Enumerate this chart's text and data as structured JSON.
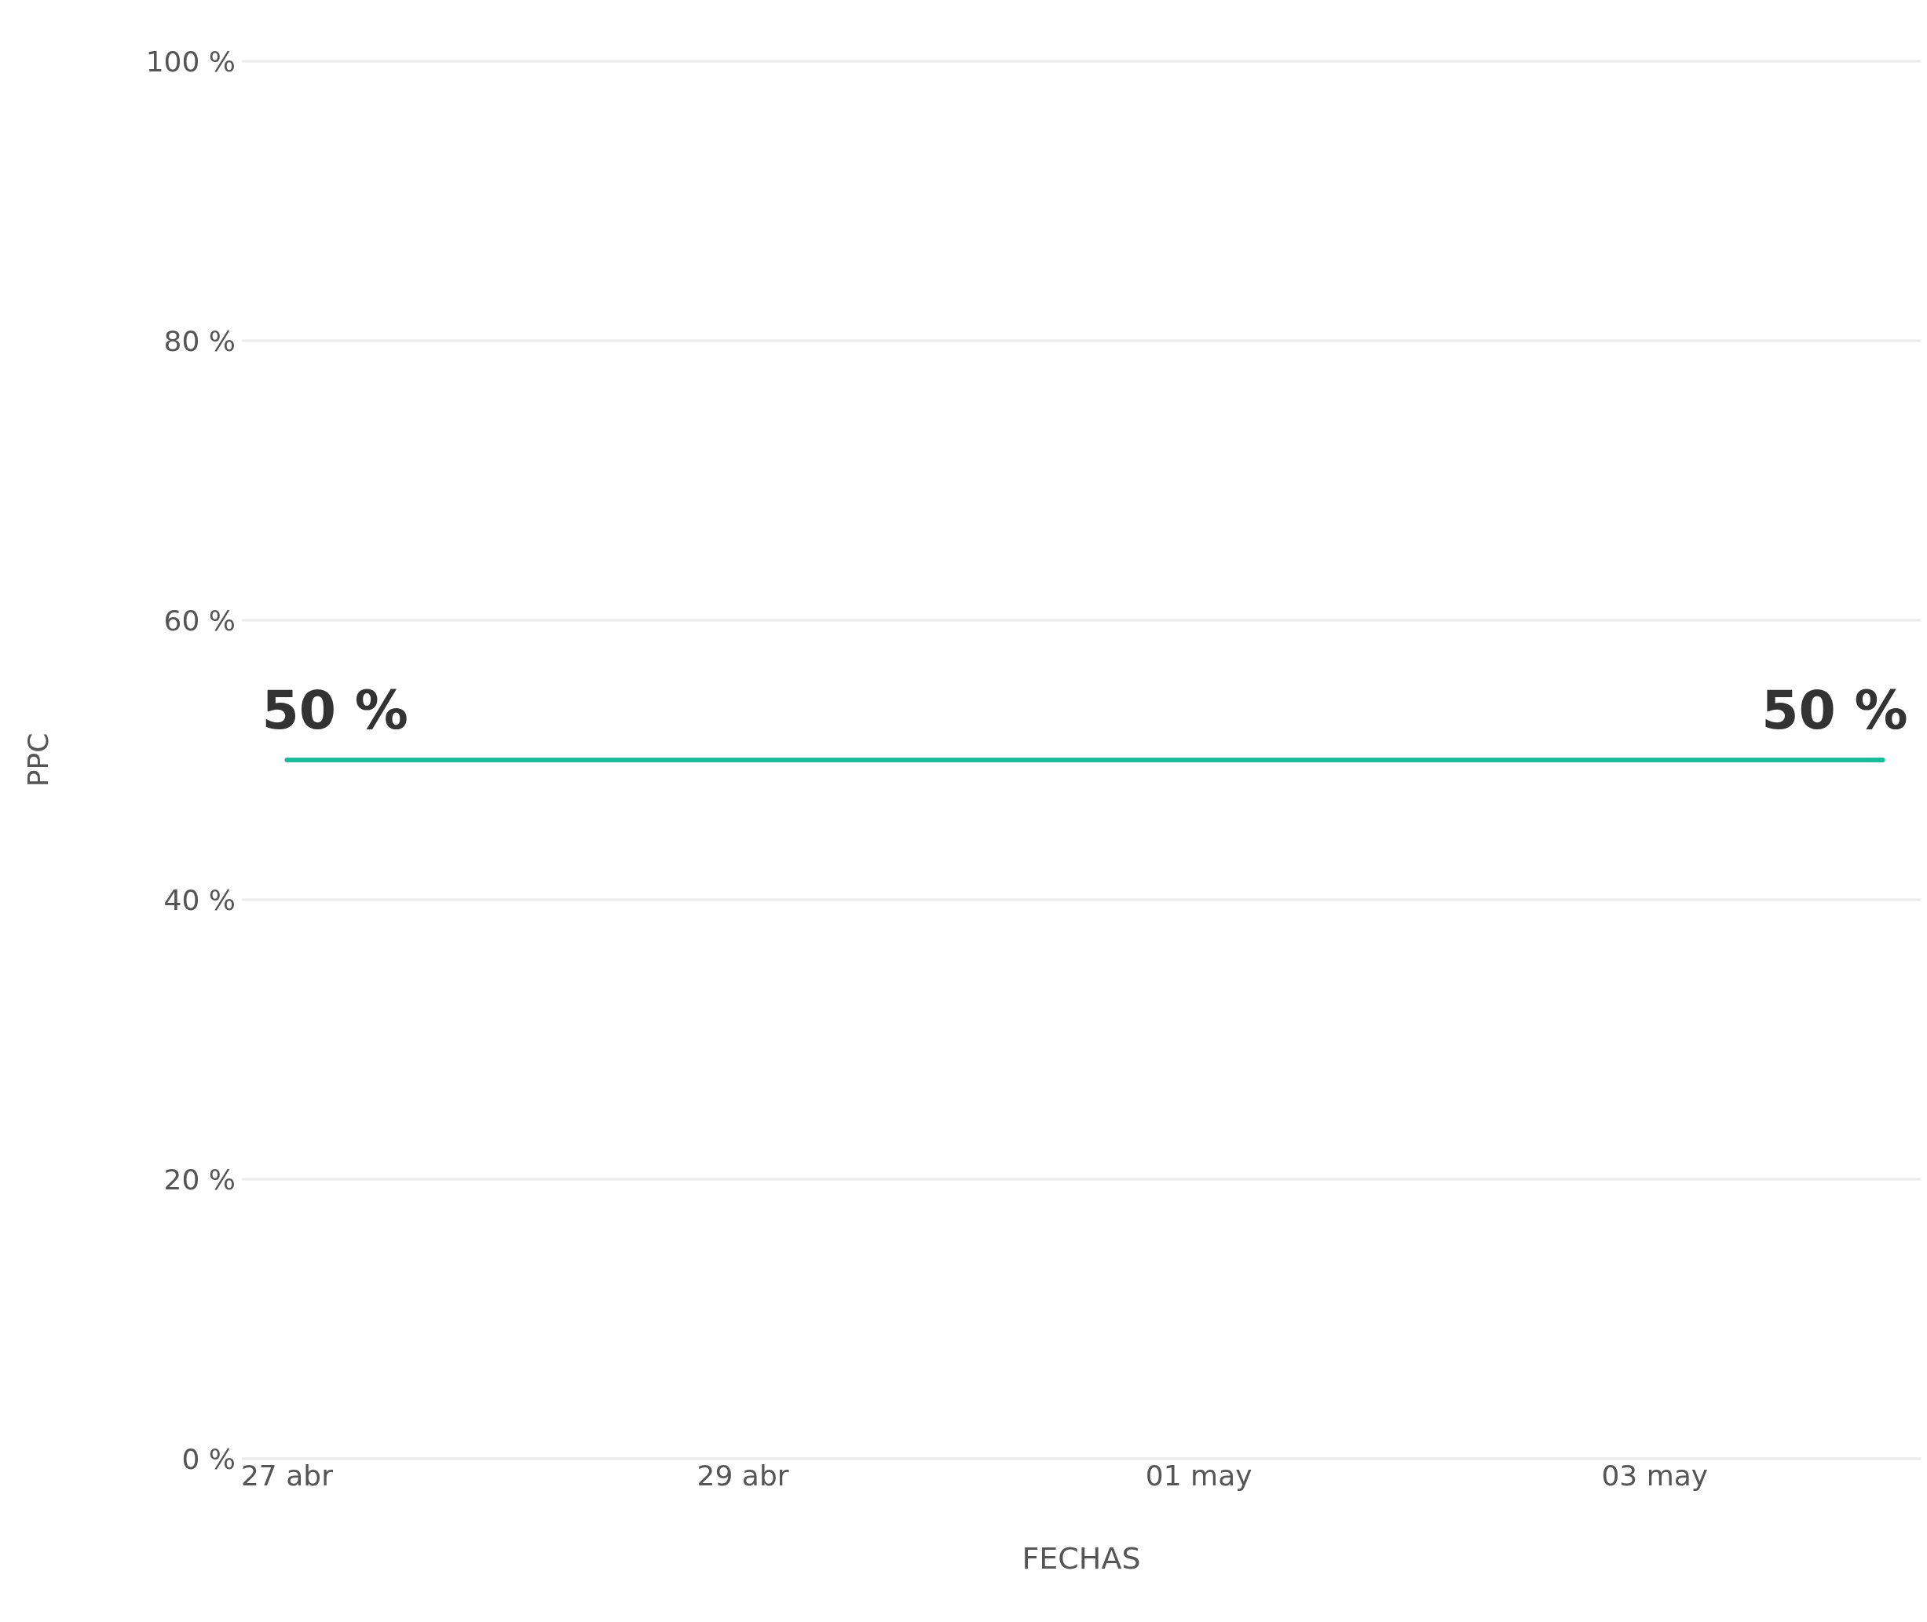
{
  "chart_data": {
    "type": "line",
    "xlabel": "FECHAS",
    "ylabel": "PPC",
    "x": [
      "--04-27",
      "--05-04"
    ],
    "series": [
      {
        "color": "#1abc9c",
        "values": [
          50,
          50
        ],
        "value_labels": [
          "50 %",
          "50 %"
        ]
      }
    ],
    "xlim": [
      "--04-26T19:15",
      "--05-04T04:00"
    ],
    "xticks": [
      {
        "value": "--04-27",
        "label": "27 abr"
      },
      {
        "value": "--04-29",
        "label": "29 abr"
      },
      {
        "value": "--05-01",
        "label": "01 may"
      },
      {
        "value": "--05-03",
        "label": "03 may"
      }
    ],
    "ylim": [
      0,
      100
    ],
    "yticks": [
      {
        "value": 0,
        "label": "0 %"
      },
      {
        "value": 20,
        "label": "20 %"
      },
      {
        "value": 40,
        "label": "40 %"
      },
      {
        "value": 60,
        "label": "60 %"
      },
      {
        "value": 80,
        "label": "80 %"
      },
      {
        "value": 100,
        "label": "100 %"
      }
    ],
    "grid": "y",
    "legend": false,
    "marker": "none",
    "line_style": "solid"
  }
}
